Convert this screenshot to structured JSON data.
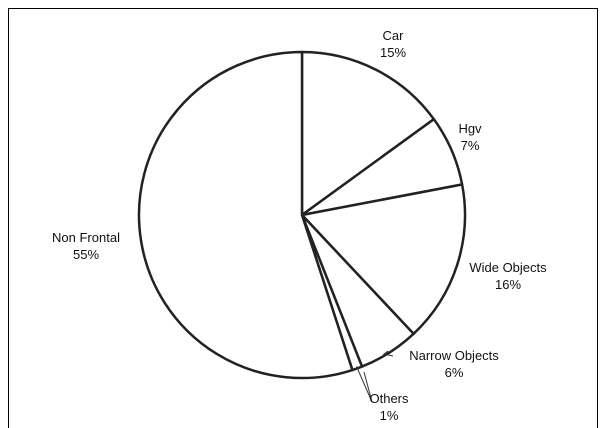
{
  "chart_data": {
    "type": "pie",
    "title": "",
    "start_angle_deg": 0,
    "direction": "clockwise",
    "slices": [
      {
        "label": "Car",
        "percent_label": "15%",
        "value": 15
      },
      {
        "label": "Hgv",
        "percent_label": "7%",
        "value": 7
      },
      {
        "label": "Wide Objects",
        "percent_label": "16%",
        "value": 16
      },
      {
        "label": "Narrow Objects",
        "percent_label": "6%",
        "value": 6
      },
      {
        "label": "Others",
        "percent_label": "1%",
        "value": 1
      },
      {
        "label": "Non Frontal",
        "percent_label": "55%",
        "value": 55
      }
    ],
    "slice_fill": "#ffffff",
    "stroke_color": "#222222",
    "legend": "none"
  }
}
